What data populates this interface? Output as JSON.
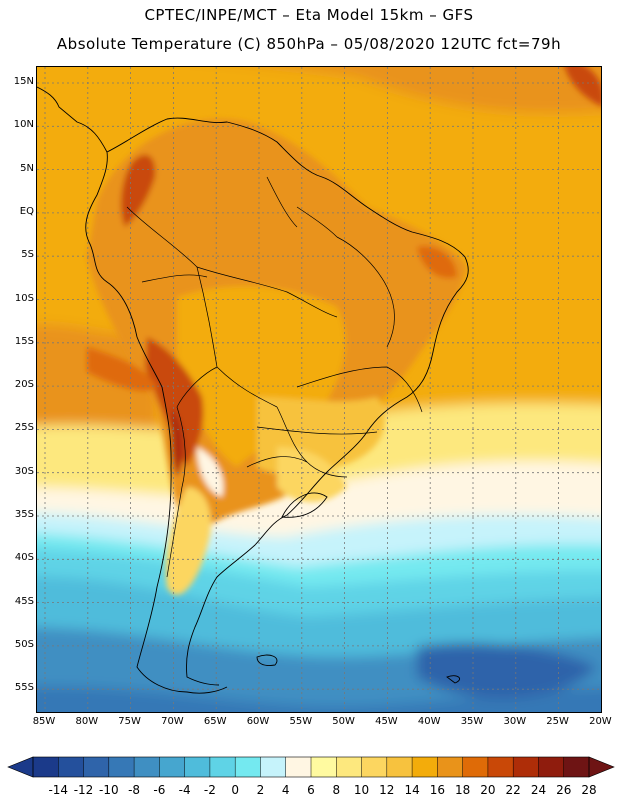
{
  "header": {
    "title_line1": "CPTEC/INPE/MCT –  Eta Model 15km – GFS",
    "title_line2": "Absolute Temperature (C) 850hPa – 05/08/2020 12UTC fct=79h"
  },
  "map": {
    "lat_labels": [
      "15N",
      "10N",
      "5N",
      "EQ",
      "5S",
      "10S",
      "15S",
      "20S",
      "25S",
      "30S",
      "35S",
      "40S",
      "45S",
      "50S",
      "55S"
    ],
    "lon_labels": [
      "85W",
      "80W",
      "75W",
      "70W",
      "65W",
      "60W",
      "55W",
      "50W",
      "45W",
      "40W",
      "35W",
      "30W",
      "25W",
      "20W"
    ]
  },
  "legend": {
    "labels": [
      "-14",
      "-12",
      "-10",
      "-8",
      "-6",
      "-4",
      "-2",
      "0",
      "2",
      "4",
      "6",
      "8",
      "10",
      "12",
      "14",
      "16",
      "18",
      "20",
      "22",
      "24",
      "26",
      "28"
    ],
    "colors": [
      "#1b3a8a",
      "#24509c",
      "#2f64aa",
      "#3678b6",
      "#3f8fc2",
      "#46a6cf",
      "#4fbcdb",
      "#5fd3e6",
      "#74e9f0",
      "#c6f3fb",
      "#fff6e3",
      "#fffaa0",
      "#fde87e",
      "#fcd660",
      "#f7c23e",
      "#f3ac0b",
      "#e9931a",
      "#df6b07",
      "#c94807",
      "#ae2d08",
      "#8f1c0d",
      "#6e1414"
    ]
  }
}
